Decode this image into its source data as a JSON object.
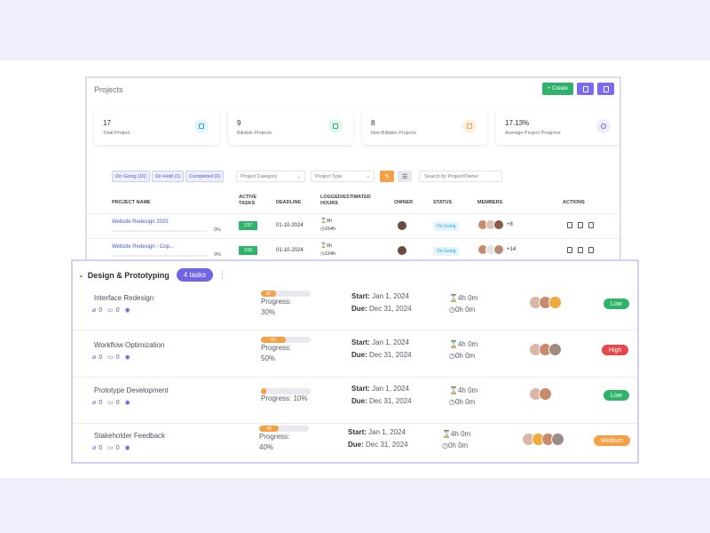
{
  "projects": {
    "title": "Projects",
    "create_label": "+ Create",
    "stats": [
      {
        "value": "17",
        "label": "Total Project",
        "icon": "list-icon",
        "color": "#29a3d8",
        "bg": "#e3f4fc"
      },
      {
        "value": "9",
        "label": "Billable Projects",
        "icon": "billable-icon",
        "color": "#2fb36b",
        "bg": "#e3f6ec"
      },
      {
        "value": "8",
        "label": "Non-Billable Projects",
        "icon": "non-billable-icon",
        "color": "#f6a045",
        "bg": "#fdf0e3"
      },
      {
        "value": "17.13%",
        "label": "Average Project Progress",
        "icon": "clock-icon",
        "color": "#6f63e6",
        "bg": "#eeecfc"
      }
    ],
    "filters": {
      "tabs": [
        "On Going (16)",
        "On Hold (1)",
        "Completed (0)"
      ],
      "category_placeholder": "Project Category",
      "type_placeholder": "Project Type",
      "search_placeholder": "Search by Project/Owner"
    },
    "columns": {
      "name": "PROJECT NAME",
      "active_tasks": "ACTIVE TASKS",
      "deadline": "DEADLINE",
      "hours": "LOGGED/ESTIMATED HOURS",
      "owner": "OWNER",
      "status": "STATUS",
      "members": "MEMBERS",
      "actions": "ACTIONS"
    },
    "rows": [
      {
        "name": "Website Redesign 2025",
        "percent": "0%",
        "active_tasks": "1/37",
        "deadline": "01-10-2024",
        "logged": "0h",
        "estimated": "154h",
        "status": "On Going",
        "more_members": "+8"
      },
      {
        "name": "Website Redesign - Cop...",
        "percent": "0%",
        "active_tasks": "1/30",
        "deadline": "01-10-2024",
        "logged": "0h",
        "estimated": "124h",
        "status": "On Going",
        "more_members": "+14"
      }
    ]
  },
  "task_group": {
    "title": "Design & Prototyping",
    "count_label": "4 tasks",
    "tasks": [
      {
        "name": "Interface Redesign",
        "attachments": "0",
        "comments": "0",
        "progress": 30,
        "progress_badge": "30",
        "progress_label": "Progress:",
        "progress_value": "30%",
        "start_label": "Start:",
        "start": "Jan 1, 2024",
        "due_label": "Due:",
        "due": "Dec 31, 2024",
        "logged": "4h 0m",
        "remaining": "0h 0m",
        "priority": "Low",
        "priority_color": "#2fb36b"
      },
      {
        "name": "Workflow Optimization",
        "attachments": "0",
        "comments": "0",
        "progress": 50,
        "progress_badge": "50",
        "progress_label": "Progress:",
        "progress_value": "50%",
        "start_label": "Start:",
        "start": "Jan 1, 2024",
        "due_label": "Due:",
        "due": "Dec 31, 2024",
        "logged": "4h 0m",
        "remaining": "0h 0m",
        "priority": "High",
        "priority_color": "#e5484d"
      },
      {
        "name": "Prototype Development",
        "attachments": "0",
        "comments": "0",
        "progress": 10,
        "progress_badge": "",
        "progress_label": "Progress: 10%",
        "progress_value": "",
        "start_label": "Start:",
        "start": "Jan 1, 2024",
        "due_label": "Due:",
        "due": "Dec 31, 2024",
        "logged": "4h 0m",
        "remaining": "0h 0m",
        "priority": "Low",
        "priority_color": "#2fb36b"
      },
      {
        "name": "Stakeholder Feedback",
        "attachments": "0",
        "comments": "0",
        "progress": 40,
        "progress_badge": "40",
        "progress_label": "Progress:",
        "progress_value": "40%",
        "start_label": "Start:",
        "start": "Jan 1, 2024",
        "due_label": "Due:",
        "due": "Dec 31, 2024",
        "logged": "4h 0m",
        "remaining": "0h 0m",
        "priority": "Medium",
        "priority_color": "#f6a045"
      }
    ]
  }
}
